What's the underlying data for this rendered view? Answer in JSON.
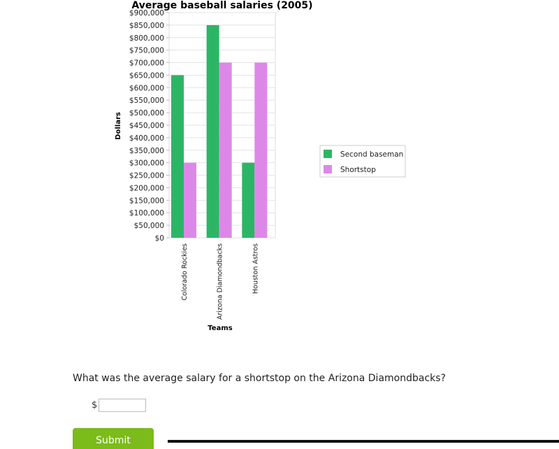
{
  "chart_data": {
    "type": "bar",
    "title": "Average baseball salaries (2005)",
    "xlabel": "Teams",
    "ylabel": "Dollars",
    "categories": [
      "Colorado Rockies",
      "Arizona Diamondbacks",
      "Houston Astros"
    ],
    "series": [
      {
        "name": "Second baseman",
        "color": "#2db566",
        "values": [
          650000,
          850000,
          300000
        ]
      },
      {
        "name": "Shortstop",
        "color": "#dd88e8",
        "values": [
          300000,
          700000,
          700000
        ]
      }
    ],
    "ylim": [
      0,
      900000
    ],
    "yticks": [
      0,
      50000,
      100000,
      150000,
      200000,
      250000,
      300000,
      350000,
      400000,
      450000,
      500000,
      550000,
      600000,
      650000,
      700000,
      750000,
      800000,
      850000,
      900000
    ],
    "ytick_labels": [
      "$0",
      "$50,000",
      "$100,000",
      "$150,000",
      "$200,000",
      "$250,000",
      "$300,000",
      "$350,000",
      "$400,000",
      "$450,000",
      "$500,000",
      "$550,000",
      "$600,000",
      "$650,000",
      "$700,000",
      "$750,000",
      "$800,000",
      "$850,000",
      "$900,000"
    ],
    "grid": true,
    "legend": "right"
  },
  "question": {
    "text": "What was the average salary for a shortstop on the Arizona Diamondbacks?",
    "currency": "$",
    "answer_value": "",
    "submit_label": "Submit"
  }
}
